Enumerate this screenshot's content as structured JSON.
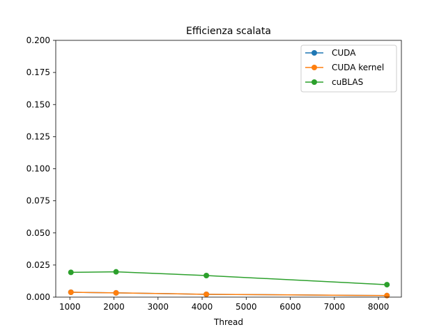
{
  "chart_data": {
    "type": "line",
    "title": "Efficienza scalata",
    "xlabel": "Thread",
    "ylabel": "",
    "xlim": [
      680,
      8520
    ],
    "ylim": [
      0,
      0.2
    ],
    "xticks": [
      1000,
      2000,
      3000,
      4000,
      5000,
      6000,
      7000,
      8000
    ],
    "xtick_labels": [
      "1000",
      "2000",
      "3000",
      "4000",
      "5000",
      "6000",
      "7000",
      "8000"
    ],
    "yticks": [
      0,
      0.025,
      0.05,
      0.075,
      0.1,
      0.125,
      0.15,
      0.175,
      0.2
    ],
    "ytick_labels": [
      "0.000",
      "0.025",
      "0.050",
      "0.075",
      "0.100",
      "0.125",
      "0.150",
      "0.175",
      "0.200"
    ],
    "grid": false,
    "legend_position": "top-right",
    "x": [
      1024,
      2048,
      4096,
      8192
    ],
    "series": [
      {
        "name": "CUDA",
        "color": "#1f77b4",
        "marker": "circle",
        "values": [
          0.0038,
          0.0033,
          0.0022,
          0.0012
        ]
      },
      {
        "name": "CUDA kernel",
        "color": "#ff7f0e",
        "marker": "circle",
        "values": [
          0.0038,
          0.0033,
          0.0022,
          0.0012
        ]
      },
      {
        "name": "cuBLAS",
        "color": "#2ca02c",
        "marker": "circle",
        "values": [
          0.0193,
          0.0197,
          0.0168,
          0.0097
        ]
      }
    ]
  }
}
